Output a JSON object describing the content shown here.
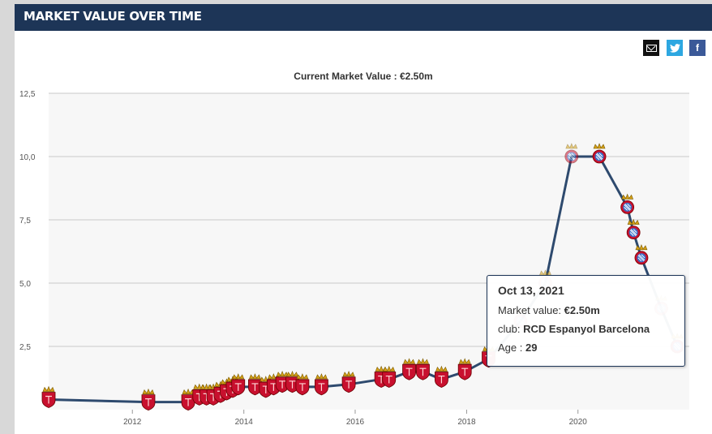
{
  "header": {
    "title": "MARKET VALUE OVER TIME"
  },
  "share": {
    "email_icon": "email-icon",
    "twitter_icon": "twitter-icon",
    "facebook_icon": "facebook-icon",
    "facebook_glyph": "f"
  },
  "colors": {
    "header_bg": "#1d3557",
    "line": "#2e4a6e",
    "badge_red": "#c8102e",
    "badge_gold": "#d4a017",
    "espanyol_blue": "#3a6fc7"
  },
  "chart_data": {
    "type": "line",
    "title": "",
    "subtitle": "Current Market Value : €2.50m",
    "xlabel": "",
    "ylabel": "",
    "xlim": [
      "2010-07-01",
      "2021-12-31"
    ],
    "ylim": [
      0,
      12.5
    ],
    "x_ticks": [
      "2012",
      "2014",
      "2016",
      "2018",
      "2020"
    ],
    "y_ticks": [
      "12,5",
      "10,0",
      "7,5",
      "5,0",
      "2,5"
    ],
    "grid": "horizontal",
    "series": [
      {
        "x": [
          "2010-07-01",
          "2012-04-15",
          "2013-01-01",
          "2013-03-15",
          "2013-05-01",
          "2013-06-15",
          "2013-08-01",
          "2013-09-10",
          "2013-10-20",
          "2013-11-25",
          "2014-03-15",
          "2014-05-25",
          "2014-07-15",
          "2014-09-10",
          "2014-11-15",
          "2015-01-20",
          "2015-05-25",
          "2015-11-20",
          "2016-06-20",
          "2016-08-10",
          "2016-12-20",
          "2017-03-20",
          "2017-07-20",
          "2017-12-20",
          "2018-05-25",
          "2018-12-20",
          "2019-06-01",
          "2019-11-20",
          "2020-05-20",
          "2020-11-20",
          "2020-12-30",
          "2021-02-20",
          "2021-06-30",
          "2021-10-13"
        ],
        "values": [
          0.4,
          0.3,
          0.3,
          0.5,
          0.5,
          0.5,
          0.6,
          0.7,
          0.8,
          0.9,
          0.9,
          0.8,
          0.9,
          1.0,
          1.0,
          0.9,
          0.9,
          1.0,
          1.2,
          1.2,
          1.5,
          1.5,
          1.2,
          1.5,
          2.0,
          3.5,
          5.0,
          10.0,
          10.0,
          8.0,
          7.0,
          6.0,
          4.0,
          2.5
        ],
        "club": [
          "red",
          "red",
          "red",
          "red",
          "red",
          "red",
          "red",
          "red",
          "red",
          "red",
          "red",
          "red",
          "red",
          "red",
          "red",
          "red",
          "red",
          "red",
          "red",
          "red",
          "red",
          "red",
          "red",
          "red",
          "red",
          "espanyol",
          "espanyol",
          "espanyol",
          "espanyol",
          "espanyol",
          "espanyol",
          "espanyol",
          "espanyol",
          "espanyol"
        ]
      }
    ],
    "highlight_index": 33
  },
  "tooltip": {
    "date": "Oct 13, 2021",
    "market_value_label": "Market value:",
    "market_value": "€2.50m",
    "club_label": "club:",
    "club": "RCD Espanyol Barcelona",
    "age_label": "Age :",
    "age": "29"
  }
}
